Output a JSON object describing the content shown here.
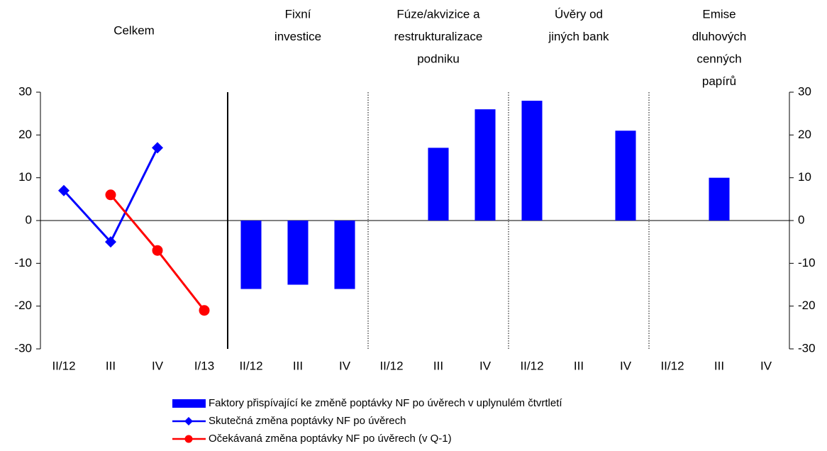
{
  "chart_data": {
    "type": "bar",
    "groups": [
      [
        "Celkem"
      ],
      [
        "Fixní",
        "investice"
      ],
      [
        "Fúze/akvizice a",
        "restrukturalizace",
        "podniku"
      ],
      [
        "Úvěry od",
        "jiných bank"
      ],
      [
        "Emise",
        "dluhových",
        "cenných",
        "papírů"
      ]
    ],
    "categories": [
      "II/12",
      "III",
      "IV",
      "I/13",
      "II/12",
      "III",
      "IV",
      "II/12",
      "III",
      "IV",
      "II/12",
      "III",
      "IV",
      "II/12",
      "III",
      "IV"
    ],
    "series": [
      {
        "name": "Faktory přispívající ke změně poptávky NF po úvěrech v uplynulém čtvrtletí",
        "type": "bar",
        "color": "#0000ff",
        "values": [
          null,
          null,
          null,
          null,
          -16,
          -15,
          -16,
          null,
          17,
          26,
          28,
          null,
          21,
          null,
          10,
          null
        ]
      },
      {
        "name": "Skutečná změna poptávky NF po úvěrech",
        "type": "line",
        "marker": "diamond",
        "color": "#0000ff",
        "values": [
          7,
          -5,
          17,
          null,
          null,
          null,
          null,
          null,
          null,
          null,
          null,
          null,
          null,
          null,
          null,
          null
        ]
      },
      {
        "name": "Očekávaná změna poptávky NF po úvěrech (v Q-1)",
        "type": "line",
        "marker": "circle",
        "color": "#ff0000",
        "values": [
          null,
          6,
          -7,
          -21,
          null,
          null,
          null,
          null,
          null,
          null,
          null,
          null,
          null,
          null,
          null,
          null
        ]
      }
    ],
    "ylim": [
      -30,
      30
    ],
    "yticks": [
      -30,
      -20,
      -10,
      0,
      10,
      20,
      30
    ],
    "y2lim": [
      -30,
      30
    ],
    "y2ticks": [
      -30,
      -20,
      -10,
      0,
      10,
      20,
      30
    ]
  }
}
